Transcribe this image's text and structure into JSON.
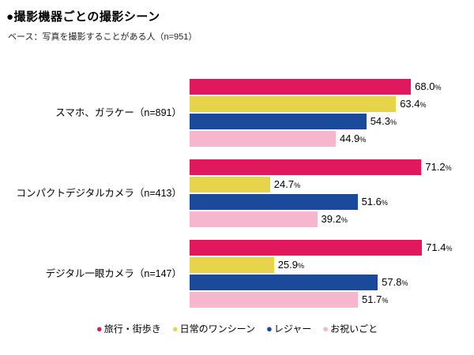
{
  "title": "●撮影機器ごとの撮影シーン",
  "subtitle": "ベース：写真を撮影することがある人（n=951）",
  "chart_data": {
    "type": "bar",
    "orientation": "horizontal",
    "title": "撮影機器ごとの撮影シーン",
    "base_note": "写真を撮影することがある人（n=951）",
    "categories": [
      "スマホ、ガラケー（n=891）",
      "コンパクトデジタルカメラ（n=413）",
      "デジタル一眼カメラ（n=147）"
    ],
    "series": [
      {
        "name": "旅行・街歩き",
        "color": "#e0195f",
        "values": [
          68.0,
          71.2,
          71.4
        ]
      },
      {
        "name": "日常のワンシーン",
        "color": "#e8d44a",
        "values": [
          63.4,
          24.7,
          25.9
        ]
      },
      {
        "name": "レジャー",
        "color": "#1b4a9b",
        "values": [
          54.3,
          51.6,
          57.8
        ]
      },
      {
        "name": "お祝いごと",
        "color": "#f5b6ce",
        "values": [
          44.9,
          39.2,
          51.7
        ]
      }
    ],
    "value_suffix": "%",
    "xlim": [
      0,
      80
    ],
    "grid": false,
    "legend_position": "bottom"
  }
}
